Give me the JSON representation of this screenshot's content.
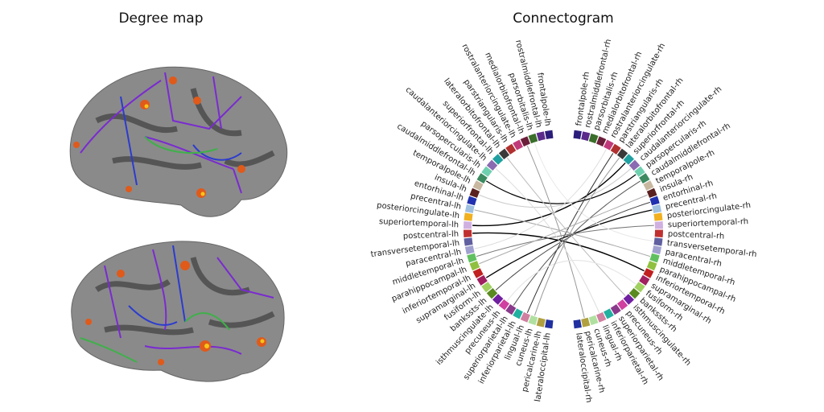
{
  "titles": {
    "degree_map": "Degree map",
    "connectogram": "Connectogram"
  },
  "connectogram": {
    "right": [
      "frontalpole-rh",
      "rostralmiddlefrontal-rh",
      "parsorbitalis-rh",
      "medialorbitofrontal-rh",
      "rostralanteriorcingulate-rh",
      "parstriangularis-rh",
      "lateralorbitofrontal-rh",
      "superiorfrontal-rh",
      "caudalanteriorcingulate-rh",
      "parsopercularis-rh",
      "caudalmiddlefrontal-rh",
      "temporalpole-rh",
      "insula-rh",
      "entorhinal-rh",
      "precentral-rh",
      "posteriorcingulate-rh",
      "superiortemporal-rh",
      "postcentral-rh",
      "transversetemporal-rh",
      "paracentral-rh",
      "middletemporal-rh",
      "parahippocampal-rh",
      "inferiortemporal-rh",
      "supramarginal-rh",
      "fusiform-rh",
      "bankssts-rh",
      "isthmuscingulate-rh",
      "precuneus-rh",
      "superiorparietal-rh",
      "inferiorparietal-rh",
      "lingual-rh",
      "cuneus-rh",
      "pericalcarine-rh",
      "lateraloccipital-rh"
    ],
    "left": [
      "frontalpole-lh",
      "rostralmiddlefrontal-lh",
      "parsorbitalis-lh",
      "medialorbitofrontal-lh",
      "rostralanteriorcingulate-lh",
      "parstriangularis-lh",
      "lateralorbitofrontal-lh",
      "superiorfrontal-lh",
      "caudalanteriorcingulate-lh",
      "parsopercularis-lh",
      "caudalmiddlefrontal-lh",
      "temporalpole-lh",
      "insula-lh",
      "entorhinal-lh",
      "precentral-lh",
      "posteriorcingulate-lh",
      "superiortemporal-lh",
      "postcentral-lh",
      "transversetemporal-lh",
      "paracentral-lh",
      "middletemporal-lh",
      "parahippocampal-lh",
      "inferiortemporal-lh",
      "supramarginal-lh",
      "fusiform-lh",
      "bankssts-lh",
      "isthmuscingulate-lh",
      "precuneus-lh",
      "superiorparietal-lh",
      "inferiorparietal-lh",
      "lingual-lh",
      "cuneus-lh",
      "pericalcarine-lh",
      "lateraloccipital-lh"
    ]
  }
}
